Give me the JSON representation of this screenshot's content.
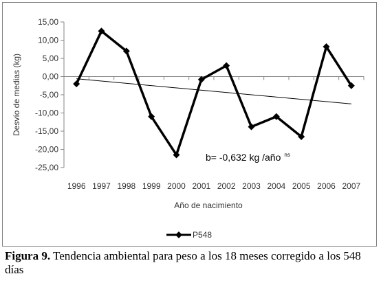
{
  "chart_data": {
    "type": "line",
    "categories": [
      "1996",
      "1997",
      "1998",
      "1999",
      "2000",
      "2001",
      "2002",
      "2003",
      "2004",
      "2005",
      "2006",
      "2007"
    ],
    "series": [
      {
        "name": "P548",
        "values": [
          -2.0,
          12.5,
          7.0,
          -11.0,
          -21.5,
          -0.8,
          3.0,
          -13.8,
          -11.0,
          -16.5,
          8.2,
          -2.5
        ],
        "color": "#000000",
        "marker": "diamond"
      }
    ],
    "trendline": {
      "start": -0.6,
      "end": -7.5,
      "color": "#000000"
    },
    "xlabel": "Año de nacimiento",
    "ylabel": "Desvío de medias (kg)",
    "ylim": [
      -25,
      15
    ],
    "yticks": [
      15,
      10,
      5,
      0,
      -5,
      -10,
      -15,
      -20,
      -25
    ],
    "ytick_labels": [
      "15,00",
      "10,00",
      "5,00",
      "0,00",
      "-5,00",
      "-10,00",
      "-15,00",
      "-20,00",
      "-25,00"
    ],
    "grid": false,
    "legend_position": "bottom",
    "annotation": {
      "text": "b=  -0,632 kg /año",
      "superscript": "ns"
    }
  },
  "caption": {
    "label": "Figura 9.",
    "text": " Tendencia ambiental para peso a los 18 meses corregido a los 548 días"
  }
}
